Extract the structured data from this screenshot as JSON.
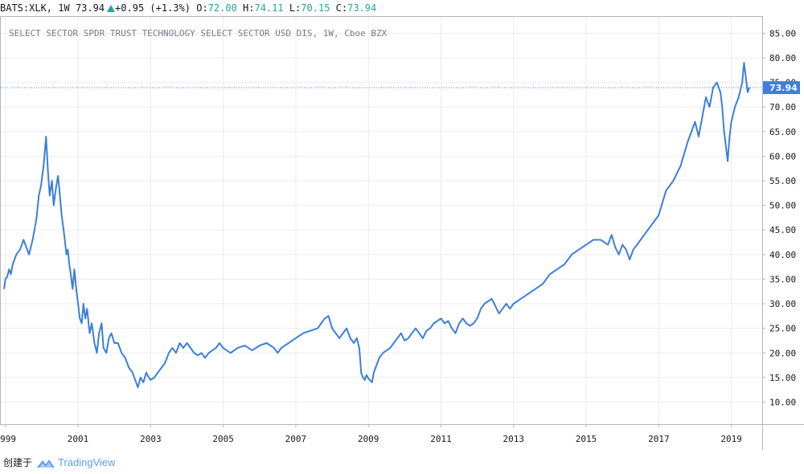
{
  "header": {
    "symbol": "BATS:XLK, 1W",
    "last": "73.94",
    "change": "+0.95 (+1.3%)",
    "o_label": "O:",
    "o": "72.00",
    "h_label": "H:",
    "h": "74.11",
    "l_label": "L:",
    "l": "70.15",
    "c_label": "C:",
    "c": "73.94"
  },
  "footer": {
    "created_with": "创建于",
    "brand": "TradingView"
  },
  "colors": {
    "line": "#3d7fd9",
    "price_label_bg": "#3d7fd9",
    "up": "#26a69a",
    "grid": "#e8ebf0"
  },
  "chart_data": {
    "type": "line",
    "title": "SELECT SECTOR SPDR TRUST TECHNOLOGY SELECT SECTOR USD DIS, 1W, Cboe BZX",
    "xlim": [
      1998.85,
      2019.85
    ],
    "ylim": [
      5.5,
      88.5
    ],
    "x_ticks": [
      1999,
      2001,
      2003,
      2005,
      2007,
      2009,
      2011,
      2013,
      2015,
      2017,
      2019
    ],
    "x_tick_labels": [
      "1999",
      "2001",
      "2003",
      "2005",
      "2007",
      "2009",
      "2011",
      "2013",
      "2015",
      "2017",
      "2019"
    ],
    "y_ticks": [
      10,
      15,
      20,
      25,
      30,
      35,
      40,
      45,
      50,
      55,
      60,
      65,
      70,
      75,
      80,
      85
    ],
    "y_tick_labels": [
      "10.00",
      "15.00",
      "20.00",
      "25.00",
      "30.00",
      "35.00",
      "40.00",
      "45.00",
      "50.00",
      "55.00",
      "60.00",
      "65.00",
      "70.00",
      "75.00",
      "80.00",
      "85.00"
    ],
    "last_price": 73.94,
    "last_price_label": "73.94",
    "grid": true,
    "series": [
      {
        "x": [
          1998.96,
          1999.0,
          1999.05,
          1999.1,
          1999.15,
          1999.2,
          1999.3,
          1999.4,
          1999.5,
          1999.55,
          1999.65,
          1999.75,
          1999.85,
          1999.92,
          1999.98,
          2000.05,
          2000.12,
          2000.17,
          2000.22,
          2000.28,
          2000.33,
          2000.4,
          2000.45,
          2000.5,
          2000.55,
          2000.62,
          2000.68,
          2000.72,
          2000.76,
          2000.8,
          2000.85,
          2000.9,
          2000.95,
          2001.0,
          2001.05,
          2001.1,
          2001.15,
          2001.2,
          2001.25,
          2001.32,
          2001.38,
          2001.45,
          2001.52,
          2001.58,
          2001.65,
          2001.7,
          2001.78,
          2001.85,
          2001.92,
          2002.0,
          2002.1,
          2002.2,
          2002.3,
          2002.4,
          2002.5,
          2002.55,
          2002.6,
          2002.65,
          2002.72,
          2002.8,
          2002.88,
          2002.95,
          2003.0,
          2003.1,
          2003.2,
          2003.3,
          2003.4,
          2003.5,
          2003.6,
          2003.7,
          2003.8,
          2003.9,
          2004.0,
          2004.1,
          2004.2,
          2004.3,
          2004.4,
          2004.5,
          2004.6,
          2004.7,
          2004.8,
          2004.9,
          2005.0,
          2005.2,
          2005.4,
          2005.6,
          2005.8,
          2006.0,
          2006.2,
          2006.4,
          2006.5,
          2006.6,
          2006.8,
          2007.0,
          2007.2,
          2007.4,
          2007.6,
          2007.7,
          2007.8,
          2007.9,
          2008.0,
          2008.1,
          2008.2,
          2008.3,
          2008.4,
          2008.5,
          2008.6,
          2008.68,
          2008.75,
          2008.8,
          2008.85,
          2008.9,
          2008.95,
          2009.0,
          2009.1,
          2009.15,
          2009.2,
          2009.3,
          2009.4,
          2009.5,
          2009.6,
          2009.7,
          2009.8,
          2009.9,
          2010.0,
          2010.1,
          2010.2,
          2010.3,
          2010.4,
          2010.5,
          2010.6,
          2010.7,
          2010.8,
          2010.9,
          2011.0,
          2011.1,
          2011.2,
          2011.3,
          2011.4,
          2011.5,
          2011.6,
          2011.7,
          2011.8,
          2011.9,
          2012.0,
          2012.1,
          2012.2,
          2012.3,
          2012.4,
          2012.5,
          2012.6,
          2012.7,
          2012.8,
          2012.9,
          2013.0,
          2013.2,
          2013.4,
          2013.6,
          2013.8,
          2014.0,
          2014.2,
          2014.4,
          2014.6,
          2014.8,
          2015.0,
          2015.2,
          2015.4,
          2015.6,
          2015.7,
          2015.8,
          2015.9,
          2016.0,
          2016.1,
          2016.2,
          2016.3,
          2016.4,
          2016.5,
          2016.6,
          2016.7,
          2016.8,
          2016.9,
          2017.0,
          2017.2,
          2017.4,
          2017.6,
          2017.8,
          2018.0,
          2018.1,
          2018.2,
          2018.3,
          2018.4,
          2018.5,
          2018.6,
          2018.7,
          2018.75,
          2018.8,
          2018.85,
          2018.9,
          2018.95,
          2019.0,
          2019.1,
          2019.2,
          2019.3,
          2019.35,
          2019.4,
          2019.45,
          2019.5
        ],
        "y": [
          33,
          35,
          35.5,
          37,
          36,
          38,
          40,
          41,
          43,
          42,
          40,
          43,
          47,
          52,
          54,
          58,
          64,
          57,
          52,
          55,
          50,
          54,
          56,
          52,
          48,
          44,
          40,
          41,
          38,
          36,
          33,
          37,
          33,
          30,
          27,
          26,
          30,
          27,
          29,
          24,
          26,
          22,
          20,
          24,
          26,
          21,
          20,
          23,
          24,
          22,
          22,
          20,
          19,
          17,
          16,
          15,
          14,
          13,
          15,
          14,
          16,
          15,
          14.5,
          15,
          16,
          17,
          18,
          20,
          21,
          20,
          22,
          21,
          22,
          21,
          20,
          19.5,
          20,
          19,
          20,
          20.5,
          21,
          22,
          21,
          20,
          21,
          21.5,
          20.5,
          21.5,
          22,
          21,
          20,
          21,
          22,
          23,
          24,
          24.5,
          25,
          26,
          27,
          27.5,
          25,
          24,
          23,
          24,
          25,
          23,
          22,
          23,
          21,
          16,
          15,
          14.5,
          15.5,
          14.8,
          14,
          16,
          17,
          19,
          20,
          20.5,
          21,
          22,
          23,
          24,
          22.5,
          23,
          24,
          25,
          24,
          23,
          24.5,
          25,
          26,
          26.5,
          27,
          26,
          26.5,
          25,
          24,
          26,
          27,
          26,
          25.5,
          26,
          27,
          29,
          30,
          30.5,
          31,
          29.5,
          28,
          29,
          30,
          29,
          30,
          31,
          32,
          33,
          34,
          36,
          37,
          38,
          40,
          41,
          42,
          43,
          43,
          42,
          44,
          41.5,
          40,
          42,
          41,
          39,
          41,
          42,
          43,
          44,
          45,
          46,
          47,
          48,
          53,
          55,
          58,
          63,
          67,
          64,
          68,
          72,
          70,
          74,
          75,
          73,
          70,
          65,
          62,
          59,
          64,
          67,
          70,
          72,
          75,
          79,
          76,
          73,
          74
        ]
      }
    ]
  }
}
